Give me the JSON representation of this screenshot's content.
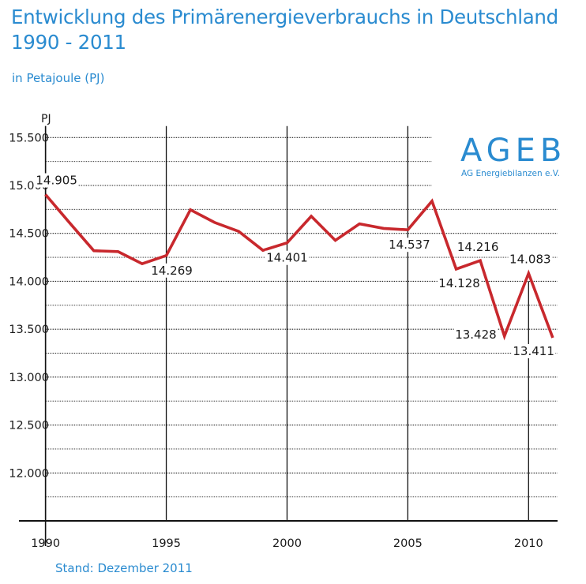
{
  "header": {
    "title_line1": "Entwicklung des Primärenergieverbrauchs in Deutschland",
    "title_line2": "1990 - 2011",
    "subtitle": "in Petajoule (PJ)"
  },
  "logo": {
    "name": "AGEB",
    "full_name": "AG Energiebilanzen e.V."
  },
  "footer": {
    "stand": "Stand: Dezember 2011"
  },
  "colors": {
    "accent": "#2a8bd0",
    "line": "#c8282d"
  },
  "chart_data": {
    "type": "line",
    "title": "Entwicklung des Primärenergieverbrauchs in Deutschland 1990 - 2011",
    "subtitle": "in Petajoule (PJ)",
    "ylabel": "PJ",
    "xlabel": "",
    "x": [
      1990,
      1991,
      1992,
      1993,
      1994,
      1995,
      1996,
      1997,
      1998,
      1999,
      2000,
      2001,
      2002,
      2003,
      2004,
      2005,
      2006,
      2007,
      2008,
      2009,
      2010,
      2011
    ],
    "series": [
      {
        "values": [
          14905,
          14610,
          14319,
          14310,
          14183,
          14269,
          14746,
          14614,
          14521,
          14323,
          14401,
          14679,
          14427,
          14600,
          14552,
          14537,
          14837,
          14128,
          14216,
          13428,
          14083,
          13411
        ]
      }
    ],
    "ylim": [
      11500,
      15700
    ],
    "xlim": [
      1988.9,
      2011.2
    ],
    "y_ticks": [
      {
        "v": 12000,
        "label": "12.000"
      },
      {
        "v": 12500,
        "label": "12.500"
      },
      {
        "v": 13000,
        "label": "13.000"
      },
      {
        "v": 13500,
        "label": "13.500"
      },
      {
        "v": 14000,
        "label": "14.000"
      },
      {
        "v": 14500,
        "label": "14.500"
      },
      {
        "v": 15000,
        "label": "15.000"
      },
      {
        "v": 15500,
        "label": "15.500"
      }
    ],
    "x_ticks": [
      1990,
      1995,
      2000,
      2005,
      2010
    ],
    "data_labels": [
      {
        "x": 1990,
        "label": "14.905",
        "pos": "above"
      },
      {
        "x": 1995,
        "label": "14.269",
        "pos": "below"
      },
      {
        "x": 2000,
        "label": "14.401",
        "pos": "below"
      },
      {
        "x": 2005,
        "label": "14.537",
        "pos": "below"
      },
      {
        "x": 2007,
        "label": "14.128",
        "pos": "below"
      },
      {
        "x": 2008,
        "label": "14.216",
        "pos": "above"
      },
      {
        "x": 2009,
        "label": "13.428",
        "pos": "left"
      },
      {
        "x": 2010,
        "label": "14.083",
        "pos": "above"
      },
      {
        "x": 2011,
        "label": "13.411",
        "pos": "below-left"
      }
    ],
    "grid": true,
    "legend": "none"
  }
}
